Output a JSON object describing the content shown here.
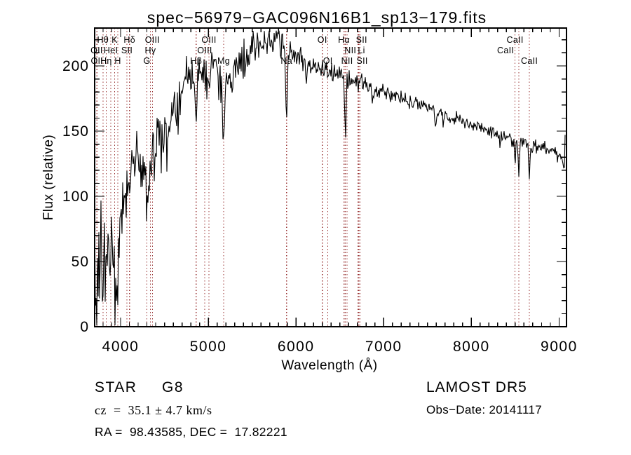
{
  "annotations": {
    "class_label": "STAR",
    "subclass_label": "G8",
    "cz_line": "cz  =  35.1 ± 4.7 km/s",
    "radec_line": "RA =  98.43585, DEC =  17.82221",
    "survey": "LAMOST DR5",
    "obs_date_line": "Obs−Date: 20141117"
  },
  "chart_data": {
    "type": "line",
    "title": "spec−56979−GAC096N16B1_sp13−179.fits",
    "xlabel": "Wavelength (Å)",
    "ylabel": "Flux (relative)",
    "xlim": [
      3704,
      9085
    ],
    "ylim": [
      0,
      229
    ],
    "grid": false,
    "legend": "none",
    "background_color": "#ffffff",
    "line_color": "#000000",
    "marker_color": "#993333",
    "x_ticks_major": [
      4000,
      5000,
      6000,
      7000,
      8000,
      9000
    ],
    "x_tick_labels": [
      "4000",
      "5000",
      "6000",
      "7000",
      "8000",
      "9000"
    ],
    "x_minor_step": 100,
    "y_ticks_major": [
      0,
      50,
      100,
      150,
      200
    ],
    "y_tick_labels": [
      "0",
      "50",
      "100",
      "150",
      "200"
    ],
    "y_minor_step": 10,
    "spectral_lines": [
      {
        "label": "OII",
        "wavelength": 3727,
        "row": 2
      },
      {
        "label": "OII",
        "wavelength": 3730,
        "row": 3
      },
      {
        "label": "Hθ",
        "wavelength": 3798,
        "row": 1
      },
      {
        "label": "Hη",
        "wavelength": 3835,
        "row": 3
      },
      {
        "label": "HeI",
        "wavelength": 3889,
        "row": 2
      },
      {
        "label": "K",
        "wavelength": 3933,
        "row": 1
      },
      {
        "label": "H",
        "wavelength": 3968,
        "row": 3
      },
      {
        "label": "SII",
        "wavelength": 4072,
        "row": 2
      },
      {
        "label": "Hδ",
        "wavelength": 4101,
        "row": 1
      },
      {
        "label": "G",
        "wavelength": 4300,
        "row": 3
      },
      {
        "label": "Hγ",
        "wavelength": 4340,
        "row": 2
      },
      {
        "label": "OIII",
        "wavelength": 4363,
        "row": 1
      },
      {
        "label": "Hβ",
        "wavelength": 4861,
        "row": 3
      },
      {
        "label": "OIII",
        "wavelength": 4959,
        "row": 2
      },
      {
        "label": "OIII",
        "wavelength": 5007,
        "row": 1
      },
      {
        "label": "Mg",
        "wavelength": 5175,
        "row": 3
      },
      {
        "label": "Na",
        "wavelength": 5892,
        "row": 3
      },
      {
        "label": "OI",
        "wavelength": 6300,
        "row": 1
      },
      {
        "label": "OI",
        "wavelength": 6363,
        "row": 3
      },
      {
        "label": "NII",
        "wavelength": 6548,
        "row": 2,
        "dx": 9
      },
      {
        "label": "Hα",
        "wavelength": 6563,
        "row": 1,
        "dx": -2
      },
      {
        "label": "NII",
        "wavelength": 6583,
        "row": 3
      },
      {
        "label": "Li",
        "wavelength": 6707,
        "row": 2,
        "dx": 5
      },
      {
        "label": "SII",
        "wavelength": 6716,
        "row": 1,
        "dx": 4
      },
      {
        "label": "SII",
        "wavelength": 6731,
        "row": 3,
        "dx": 3
      },
      {
        "label": "CaII",
        "wavelength": 8498,
        "row": 1
      },
      {
        "label": "CaII",
        "wavelength": 8542,
        "row": 2,
        "dx": -19
      },
      {
        "label": "CaII",
        "wavelength": 8662,
        "row": 3
      }
    ],
    "envelope": [
      [
        3704,
        85
      ],
      [
        3715,
        42
      ],
      [
        3727,
        46
      ],
      [
        3740,
        60
      ],
      [
        3760,
        55
      ],
      [
        3780,
        70
      ],
      [
        3800,
        62
      ],
      [
        3820,
        68
      ],
      [
        3840,
        56
      ],
      [
        3860,
        75
      ],
      [
        3880,
        65
      ],
      [
        3900,
        72
      ],
      [
        3920,
        60
      ],
      [
        3940,
        56
      ],
      [
        3960,
        60
      ],
      [
        3980,
        75
      ],
      [
        4000,
        90
      ],
      [
        4030,
        105
      ],
      [
        4060,
        114
      ],
      [
        4090,
        120
      ],
      [
        4120,
        127
      ],
      [
        4160,
        132
      ],
      [
        4200,
        136
      ],
      [
        4240,
        132
      ],
      [
        4280,
        124
      ],
      [
        4310,
        120
      ],
      [
        4340,
        127
      ],
      [
        4380,
        137
      ],
      [
        4420,
        144
      ],
      [
        4460,
        149
      ],
      [
        4500,
        151
      ],
      [
        4540,
        149
      ],
      [
        4580,
        158
      ],
      [
        4620,
        168
      ],
      [
        4660,
        176
      ],
      [
        4700,
        182
      ],
      [
        4740,
        188
      ],
      [
        4780,
        194
      ],
      [
        4820,
        198
      ],
      [
        4860,
        199
      ],
      [
        4900,
        201
      ],
      [
        4950,
        194
      ],
      [
        5000,
        197
      ],
      [
        5050,
        199
      ],
      [
        5100,
        196
      ],
      [
        5140,
        189
      ],
      [
        5180,
        186
      ],
      [
        5220,
        196
      ],
      [
        5260,
        200
      ],
      [
        5300,
        204
      ],
      [
        5350,
        204
      ],
      [
        5400,
        207
      ],
      [
        5450,
        210
      ],
      [
        5500,
        214
      ],
      [
        5560,
        216
      ],
      [
        5620,
        218
      ],
      [
        5680,
        220
      ],
      [
        5740,
        221
      ],
      [
        5800,
        221
      ],
      [
        5850,
        219
      ],
      [
        5900,
        213
      ],
      [
        5950,
        211
      ],
      [
        6000,
        208
      ],
      [
        6100,
        203
      ],
      [
        6200,
        200
      ],
      [
        6300,
        197
      ],
      [
        6400,
        194
      ],
      [
        6500,
        192
      ],
      [
        6600,
        189
      ],
      [
        6700,
        187
      ],
      [
        6800,
        184
      ],
      [
        6900,
        182
      ],
      [
        7000,
        180
      ],
      [
        7100,
        178
      ],
      [
        7200,
        176
      ],
      [
        7300,
        173
      ],
      [
        7400,
        171
      ],
      [
        7500,
        168
      ],
      [
        7600,
        166
      ],
      [
        7700,
        163
      ],
      [
        7800,
        160
      ],
      [
        7900,
        157
      ],
      [
        8000,
        155
      ],
      [
        8100,
        152
      ],
      [
        8200,
        150
      ],
      [
        8300,
        148
      ],
      [
        8400,
        146
      ],
      [
        8500,
        143
      ],
      [
        8600,
        141
      ],
      [
        8700,
        139
      ],
      [
        8800,
        137
      ],
      [
        8900,
        135
      ],
      [
        9000,
        132
      ],
      [
        9030,
        129
      ],
      [
        9048,
        125
      ],
      [
        9058,
        113
      ],
      [
        9068,
        146
      ],
      [
        9085,
        121
      ]
    ],
    "noise_sigma": [
      [
        3704,
        30
      ],
      [
        3800,
        27
      ],
      [
        3900,
        26
      ],
      [
        4000,
        18
      ],
      [
        4100,
        13
      ],
      [
        4200,
        12
      ],
      [
        4400,
        11
      ],
      [
        4600,
        11
      ],
      [
        4800,
        11
      ],
      [
        5000,
        10
      ],
      [
        5200,
        9
      ],
      [
        5400,
        8
      ],
      [
        5600,
        7
      ],
      [
        5800,
        6
      ],
      [
        6000,
        5
      ],
      [
        6200,
        4.5
      ],
      [
        6500,
        4
      ],
      [
        7000,
        3.5
      ],
      [
        7500,
        3
      ],
      [
        8000,
        2.8
      ],
      [
        8500,
        2.8
      ],
      [
        9000,
        3
      ],
      [
        9085,
        2
      ]
    ],
    "absorption_dips": [
      [
        3727,
        10,
        28
      ],
      [
        3750,
        8,
        18
      ],
      [
        3798,
        8,
        20
      ],
      [
        3835,
        9,
        26
      ],
      [
        3889,
        9,
        26
      ],
      [
        3933,
        10,
        34
      ],
      [
        3968,
        10,
        34
      ],
      [
        4045,
        8,
        12
      ],
      [
        4072,
        7,
        12
      ],
      [
        4101,
        9,
        24
      ],
      [
        4226,
        8,
        15
      ],
      [
        4300,
        16,
        22
      ],
      [
        4340,
        9,
        18
      ],
      [
        4383,
        7,
        14
      ],
      [
        4455,
        7,
        12
      ],
      [
        4531,
        7,
        13
      ],
      [
        4861,
        9,
        48
      ],
      [
        4920,
        6,
        12
      ],
      [
        5175,
        11,
        52
      ],
      [
        5270,
        7,
        14
      ],
      [
        5892,
        9,
        58
      ],
      [
        6122,
        6,
        10
      ],
      [
        6563,
        8,
        44
      ],
      [
        6870,
        7,
        10
      ],
      [
        7594,
        9,
        14
      ],
      [
        7680,
        6,
        6
      ],
      [
        8327,
        5,
        14
      ],
      [
        8498,
        6,
        18
      ],
      [
        8542,
        7,
        30
      ],
      [
        8662,
        7,
        30
      ]
    ],
    "noise_seed": 20141117
  }
}
